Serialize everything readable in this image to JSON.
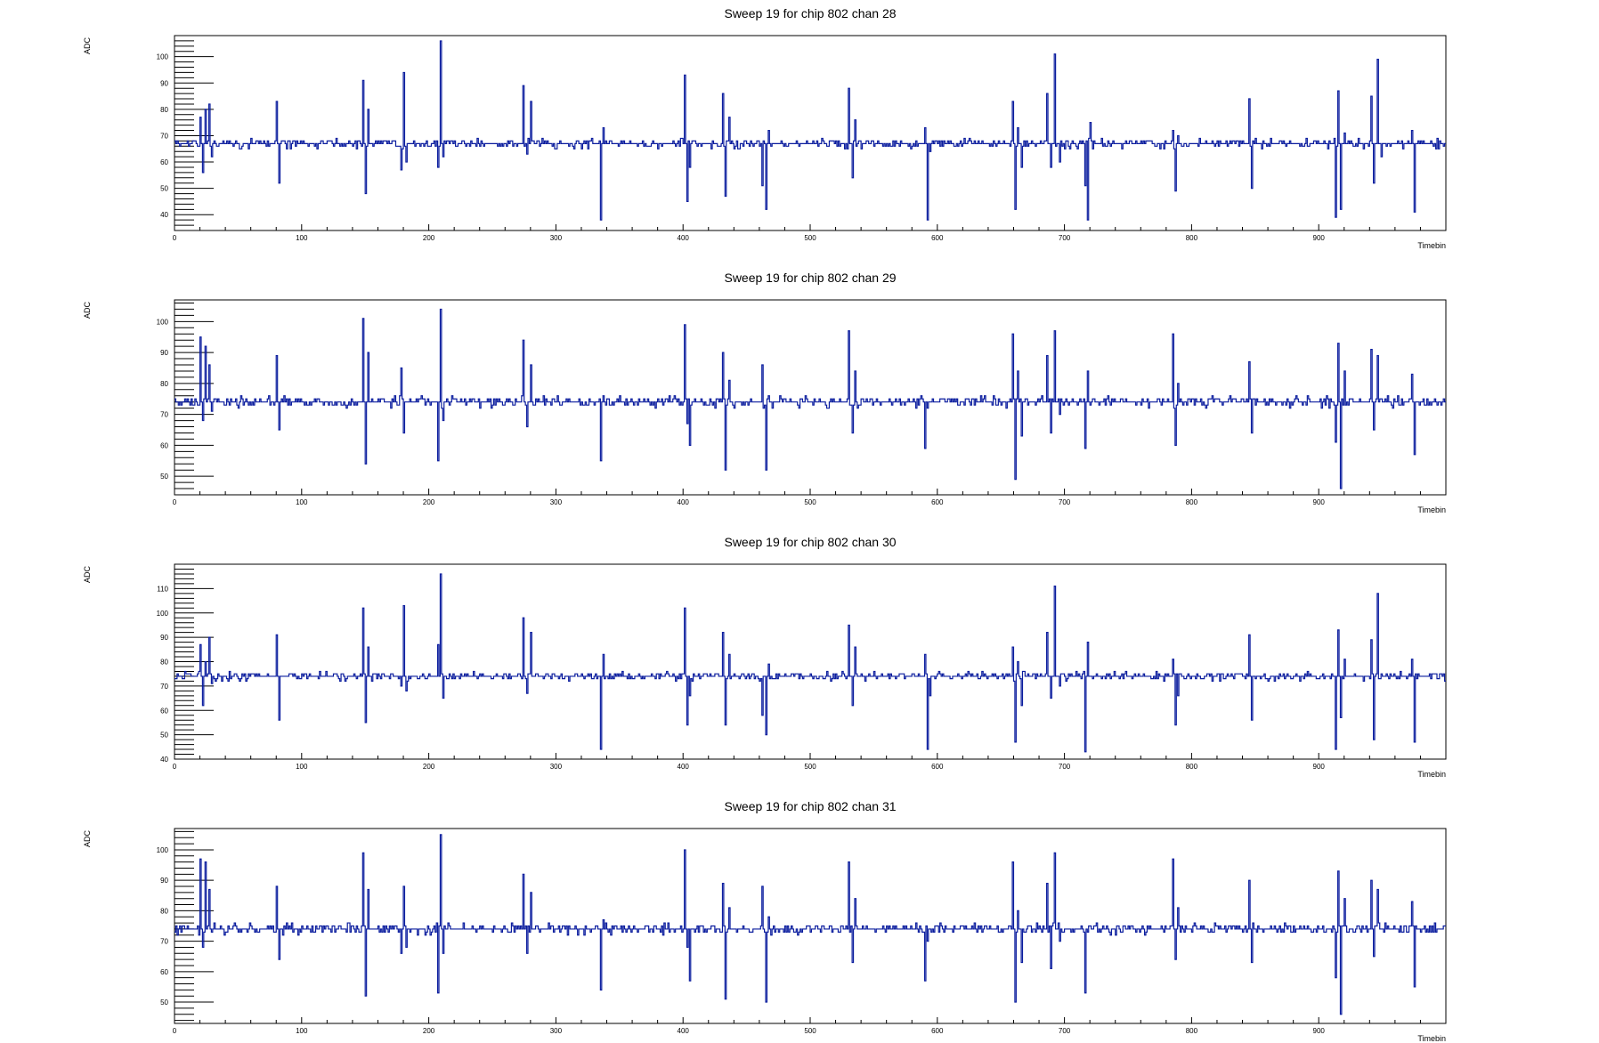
{
  "chart_data": [
    {
      "type": "line",
      "title": "Sweep 19 for chip 802 chan 28",
      "xlabel": "Timebin",
      "ylabel": "ADC",
      "xlim": [
        0,
        1000
      ],
      "ylim": [
        34,
        108
      ],
      "x_ticks": [
        0,
        100,
        200,
        300,
        400,
        500,
        600,
        700,
        800,
        900
      ],
      "y_ticks": [
        40,
        50,
        60,
        70,
        80,
        90,
        100
      ],
      "baseline": 67,
      "series": [
        {
          "values": [
            [
              20,
              77
            ],
            [
              22,
              56
            ],
            [
              24,
              80
            ],
            [
              27,
              82
            ],
            [
              29,
              62
            ],
            [
              80,
              83
            ],
            [
              82,
              52
            ],
            [
              148,
              91
            ],
            [
              150,
              48
            ],
            [
              152,
              80
            ],
            [
              178,
              57
            ],
            [
              180,
              94
            ],
            [
              182,
              60
            ],
            [
              207,
              58
            ],
            [
              209,
              106
            ],
            [
              211,
              62
            ],
            [
              274,
              89
            ],
            [
              277,
              63
            ],
            [
              280,
              83
            ],
            [
              335,
              38
            ],
            [
              337,
              73
            ],
            [
              401,
              93
            ],
            [
              403,
              45
            ],
            [
              405,
              58
            ],
            [
              431,
              86
            ],
            [
              433,
              47
            ],
            [
              436,
              77
            ],
            [
              462,
              51
            ],
            [
              465,
              42
            ],
            [
              467,
              72
            ],
            [
              530,
              88
            ],
            [
              533,
              54
            ],
            [
              535,
              76
            ],
            [
              590,
              73
            ],
            [
              592,
              38
            ],
            [
              594,
              64
            ],
            [
              659,
              83
            ],
            [
              661,
              42
            ],
            [
              663,
              73
            ],
            [
              666,
              58
            ],
            [
              686,
              86
            ],
            [
              689,
              58
            ],
            [
              692,
              101
            ],
            [
              696,
              60
            ],
            [
              716,
              51
            ],
            [
              718,
              38
            ],
            [
              720,
              75
            ],
            [
              785,
              72
            ],
            [
              787,
              49
            ],
            [
              789,
              70
            ],
            [
              845,
              84
            ],
            [
              847,
              50
            ],
            [
              913,
              39
            ],
            [
              915,
              87
            ],
            [
              917,
              42
            ],
            [
              920,
              71
            ],
            [
              941,
              85
            ],
            [
              943,
              52
            ],
            [
              946,
              99
            ],
            [
              949,
              62
            ],
            [
              973,
              72
            ],
            [
              975,
              41
            ]
          ]
        }
      ]
    },
    {
      "type": "line",
      "title": "Sweep 19 for chip 802 chan 29",
      "xlabel": "Timebin",
      "ylabel": "ADC",
      "xlim": [
        0,
        1000
      ],
      "ylim": [
        44,
        107
      ],
      "x_ticks": [
        0,
        100,
        200,
        300,
        400,
        500,
        600,
        700,
        800,
        900
      ],
      "y_ticks": [
        50,
        60,
        70,
        80,
        90,
        100
      ],
      "baseline": 74,
      "series": [
        {
          "values": [
            [
              20,
              95
            ],
            [
              22,
              68
            ],
            [
              24,
              92
            ],
            [
              27,
              86
            ],
            [
              29,
              71
            ],
            [
              80,
              89
            ],
            [
              82,
              65
            ],
            [
              148,
              101
            ],
            [
              150,
              54
            ],
            [
              152,
              90
            ],
            [
              178,
              85
            ],
            [
              180,
              64
            ],
            [
              207,
              55
            ],
            [
              209,
              104
            ],
            [
              211,
              68
            ],
            [
              274,
              94
            ],
            [
              277,
              66
            ],
            [
              280,
              86
            ],
            [
              335,
              55
            ],
            [
              337,
              76
            ],
            [
              401,
              99
            ],
            [
              403,
              67
            ],
            [
              405,
              60
            ],
            [
              431,
              90
            ],
            [
              433,
              52
            ],
            [
              436,
              81
            ],
            [
              462,
              86
            ],
            [
              465,
              52
            ],
            [
              467,
              76
            ],
            [
              530,
              97
            ],
            [
              533,
              64
            ],
            [
              535,
              84
            ],
            [
              590,
              59
            ],
            [
              592,
              72
            ],
            [
              659,
              96
            ],
            [
              661,
              49
            ],
            [
              663,
              84
            ],
            [
              666,
              63
            ],
            [
              686,
              89
            ],
            [
              689,
              64
            ],
            [
              692,
              97
            ],
            [
              696,
              70
            ],
            [
              716,
              59
            ],
            [
              718,
              84
            ],
            [
              785,
              96
            ],
            [
              787,
              60
            ],
            [
              789,
              80
            ],
            [
              845,
              87
            ],
            [
              847,
              64
            ],
            [
              913,
              61
            ],
            [
              915,
              93
            ],
            [
              917,
              46
            ],
            [
              920,
              84
            ],
            [
              941,
              91
            ],
            [
              943,
              65
            ],
            [
              946,
              89
            ],
            [
              973,
              83
            ],
            [
              975,
              57
            ]
          ]
        }
      ]
    },
    {
      "type": "line",
      "title": "Sweep 19 for chip 802 chan 30",
      "xlabel": "Timebin",
      "ylabel": "ADC",
      "xlim": [
        0,
        1000
      ],
      "ylim": [
        40,
        120
      ],
      "x_ticks": [
        0,
        100,
        200,
        300,
        400,
        500,
        600,
        700,
        800,
        900
      ],
      "y_ticks": [
        40,
        50,
        60,
        70,
        80,
        90,
        100,
        110
      ],
      "baseline": 74,
      "series": [
        {
          "values": [
            [
              20,
              87
            ],
            [
              22,
              62
            ],
            [
              24,
              80
            ],
            [
              27,
              90
            ],
            [
              29,
              71
            ],
            [
              80,
              91
            ],
            [
              82,
              56
            ],
            [
              148,
              102
            ],
            [
              150,
              55
            ],
            [
              152,
              86
            ],
            [
              178,
              70
            ],
            [
              180,
              103
            ],
            [
              182,
              68
            ],
            [
              207,
              87
            ],
            [
              209,
              116
            ],
            [
              211,
              65
            ],
            [
              274,
              98
            ],
            [
              277,
              67
            ],
            [
              280,
              92
            ],
            [
              335,
              44
            ],
            [
              337,
              83
            ],
            [
              401,
              102
            ],
            [
              403,
              54
            ],
            [
              405,
              66
            ],
            [
              431,
              92
            ],
            [
              433,
              54
            ],
            [
              436,
              83
            ],
            [
              462,
              58
            ],
            [
              465,
              50
            ],
            [
              467,
              79
            ],
            [
              530,
              95
            ],
            [
              533,
              62
            ],
            [
              535,
              86
            ],
            [
              590,
              83
            ],
            [
              592,
              44
            ],
            [
              594,
              66
            ],
            [
              659,
              86
            ],
            [
              661,
              47
            ],
            [
              663,
              80
            ],
            [
              666,
              62
            ],
            [
              686,
              92
            ],
            [
              689,
              65
            ],
            [
              692,
              111
            ],
            [
              696,
              70
            ],
            [
              716,
              43
            ],
            [
              718,
              88
            ],
            [
              785,
              81
            ],
            [
              787,
              54
            ],
            [
              789,
              66
            ],
            [
              845,
              91
            ],
            [
              847,
              56
            ],
            [
              913,
              44
            ],
            [
              915,
              93
            ],
            [
              917,
              57
            ],
            [
              920,
              81
            ],
            [
              941,
              89
            ],
            [
              943,
              48
            ],
            [
              946,
              108
            ],
            [
              973,
              81
            ],
            [
              975,
              47
            ]
          ]
        }
      ]
    },
    {
      "type": "line",
      "title": "Sweep 19 for chip 802 chan 31",
      "xlabel": "Timebin",
      "ylabel": "ADC",
      "xlim": [
        0,
        1000
      ],
      "ylim": [
        43,
        107
      ],
      "x_ticks": [
        0,
        100,
        200,
        300,
        400,
        500,
        600,
        700,
        800,
        900
      ],
      "y_ticks": [
        50,
        60,
        70,
        80,
        90,
        100
      ],
      "baseline": 74,
      "series": [
        {
          "values": [
            [
              20,
              97
            ],
            [
              22,
              68
            ],
            [
              24,
              96
            ],
            [
              27,
              87
            ],
            [
              29,
              73
            ],
            [
              80,
              88
            ],
            [
              82,
              64
            ],
            [
              148,
              99
            ],
            [
              150,
              52
            ],
            [
              152,
              87
            ],
            [
              178,
              66
            ],
            [
              180,
              88
            ],
            [
              182,
              68
            ],
            [
              207,
              53
            ],
            [
              209,
              105
            ],
            [
              211,
              66
            ],
            [
              274,
              92
            ],
            [
              277,
              66
            ],
            [
              280,
              86
            ],
            [
              335,
              54
            ],
            [
              337,
              77
            ],
            [
              401,
              100
            ],
            [
              403,
              68
            ],
            [
              405,
              57
            ],
            [
              431,
              89
            ],
            [
              433,
              51
            ],
            [
              436,
              81
            ],
            [
              462,
              88
            ],
            [
              465,
              50
            ],
            [
              467,
              78
            ],
            [
              530,
              96
            ],
            [
              533,
              63
            ],
            [
              535,
              84
            ],
            [
              590,
              57
            ],
            [
              592,
              70
            ],
            [
              659,
              96
            ],
            [
              661,
              50
            ],
            [
              663,
              80
            ],
            [
              666,
              63
            ],
            [
              686,
              89
            ],
            [
              689,
              61
            ],
            [
              692,
              99
            ],
            [
              696,
              70
            ],
            [
              716,
              53
            ],
            [
              718,
              73
            ],
            [
              785,
              97
            ],
            [
              787,
              64
            ],
            [
              789,
              81
            ],
            [
              845,
              90
            ],
            [
              847,
              63
            ],
            [
              913,
              58
            ],
            [
              915,
              93
            ],
            [
              917,
              46
            ],
            [
              920,
              84
            ],
            [
              941,
              90
            ],
            [
              943,
              65
            ],
            [
              946,
              87
            ],
            [
              973,
              83
            ],
            [
              975,
              55
            ]
          ]
        }
      ]
    }
  ],
  "colors": {
    "line": "#0b1d9e",
    "frame": "#000000",
    "background": "#ffffff"
  }
}
